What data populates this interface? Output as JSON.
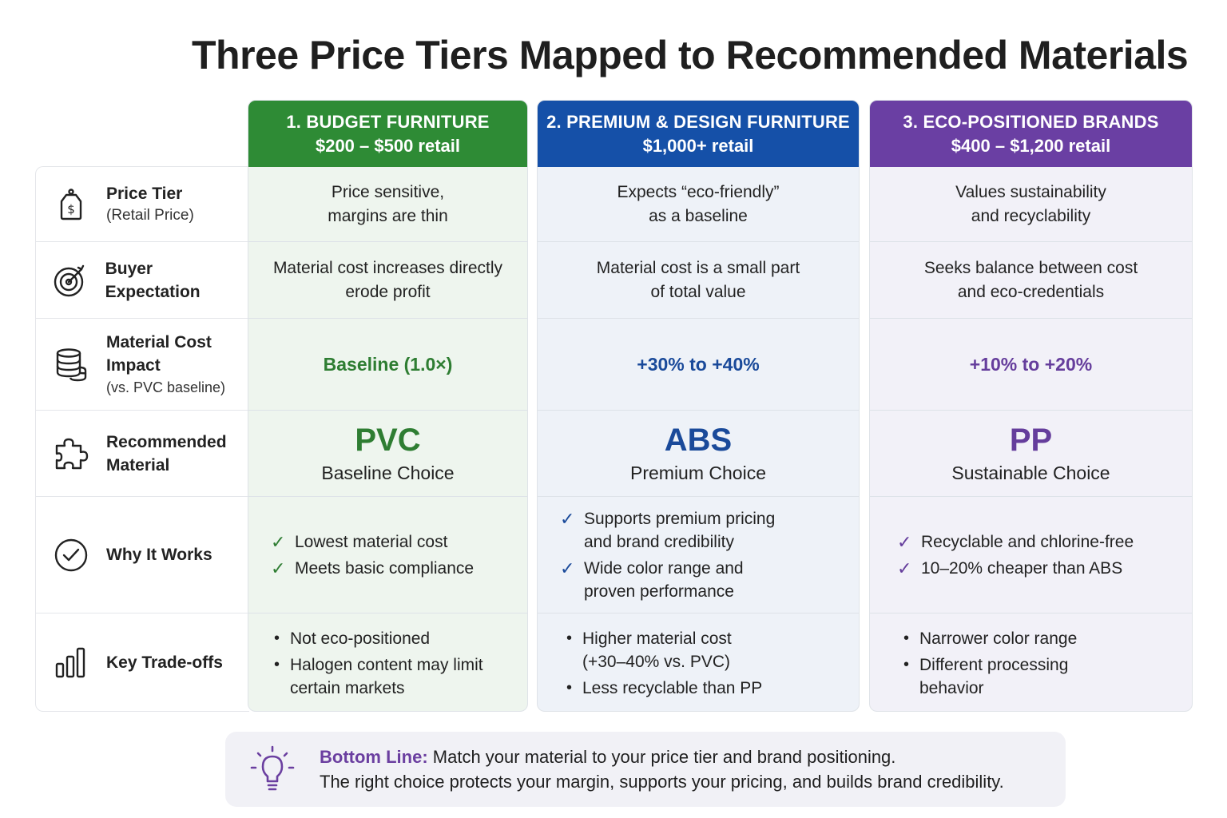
{
  "title": "Three Price Tiers Mapped to Recommended Materials",
  "rows": [
    {
      "label": "Price Tier",
      "sub": "(Retail Price)",
      "icon": "price-tag-icon"
    },
    {
      "label": "Buyer Expectation",
      "sub": "",
      "icon": "target-icon"
    },
    {
      "label": "Material Cost Impact",
      "sub": "(vs. PVC baseline)",
      "icon": "coins-stack-icon"
    },
    {
      "label": "Recommended Material",
      "sub": "",
      "icon": "puzzle-icon"
    },
    {
      "label": "Why It Works",
      "sub": "",
      "icon": "check-circle-icon"
    },
    {
      "label": "Key Trade-offs",
      "sub": "",
      "icon": "bar-chart-icon"
    }
  ],
  "tiers": [
    {
      "header": "1. BUDGET FURNITURE",
      "price": "$200 – $500 retail",
      "price_tier": [
        "Price sensitive,",
        "margins are thin"
      ],
      "buyer_expectation": [
        "Material cost increases directly",
        "erode profit"
      ],
      "cost_impact": "Baseline (1.0×)",
      "material": "PVC",
      "choice": "Baseline Choice",
      "why": [
        [
          "Lowest material cost"
        ],
        [
          "Meets basic compliance"
        ]
      ],
      "tradeoffs": [
        [
          "Not eco-positioned"
        ],
        [
          "Halogen content may limit",
          "certain markets"
        ]
      ],
      "colors": {
        "header": "#2e8b35",
        "accent": "#2e7d32",
        "body": "#eef5ee"
      }
    },
    {
      "header": "2. PREMIUM & DESIGN FURNITURE",
      "price": "$1,000+ retail",
      "price_tier": [
        "Expects “eco-friendly”",
        "as a baseline"
      ],
      "buyer_expectation": [
        "Material cost is a small part",
        "of total value"
      ],
      "cost_impact": "+30% to +40%",
      "material": "ABS",
      "choice": "Premium Choice",
      "why": [
        [
          "Supports premium pricing",
          "and brand credibility"
        ],
        [
          "Wide color range and",
          "proven performance"
        ]
      ],
      "tradeoffs": [
        [
          "Higher material cost",
          "(+30–40% vs. PVC)"
        ],
        [
          "Less recyclable than PP"
        ]
      ],
      "colors": {
        "header": "#1550a8",
        "accent": "#1a4a9a",
        "body": "#eef2f8"
      }
    },
    {
      "header": "3. ECO-POSITIONED BRANDS",
      "price": "$400 – $1,200 retail",
      "price_tier": [
        "Values sustainability",
        "and recyclability"
      ],
      "buyer_expectation": [
        "Seeks balance between cost",
        "and eco-credentials"
      ],
      "cost_impact": "+10% to +20%",
      "material": "PP",
      "choice": "Sustainable Choice",
      "why": [
        [
          "Recyclable and chlorine-free"
        ],
        [
          "10–20% cheaper than ABS"
        ]
      ],
      "tradeoffs": [
        [
          "Narrower color range"
        ],
        [
          "Different processing",
          "behavior"
        ]
      ],
      "colors": {
        "header": "#6a3fa3",
        "accent": "#653d9c",
        "body": "#f2f1f8"
      }
    }
  ],
  "bottom": {
    "label": "Bottom Line:",
    "line1": "Match your material to your price tier and brand positioning.",
    "line2": "The right choice protects your margin, supports your pricing, and builds brand credibility.",
    "icon": "lightbulb-icon"
  }
}
